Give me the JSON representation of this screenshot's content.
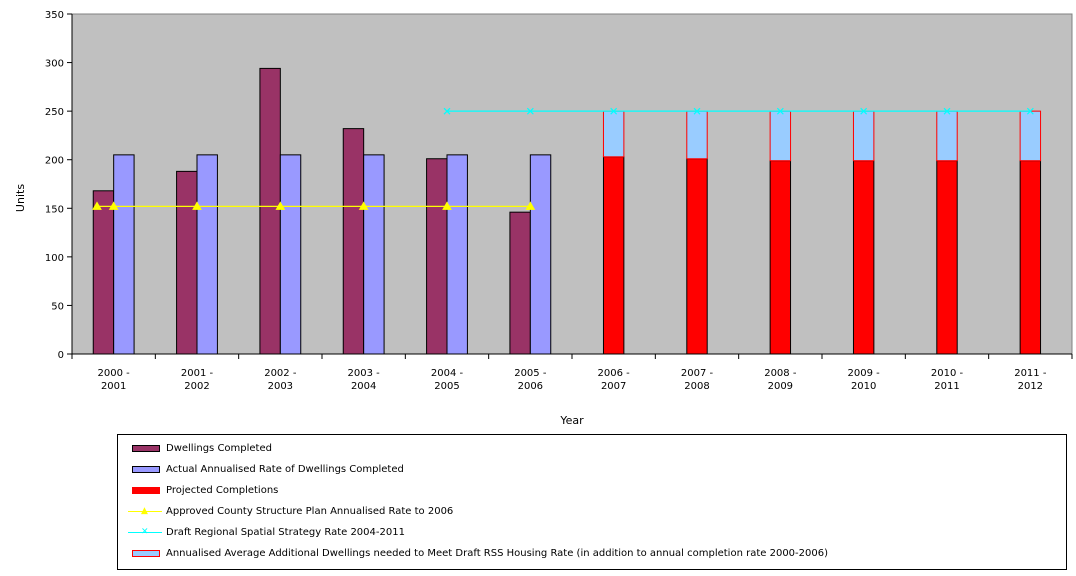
{
  "chart_data": {
    "type": "bar",
    "ylabel": "Units",
    "xlabel": "Year",
    "ylim": [
      0,
      350
    ],
    "yticks": [
      0,
      50,
      100,
      150,
      200,
      250,
      300,
      350
    ],
    "categories": [
      [
        "2000 -",
        "2001"
      ],
      [
        "2001 -",
        "2002"
      ],
      [
        "2002 -",
        "2003"
      ],
      [
        "2003 -",
        "2004"
      ],
      [
        "2004 -",
        "2005"
      ],
      [
        "2005 -",
        "2006"
      ],
      [
        "2006 -",
        "2007"
      ],
      [
        "2007 -",
        "2008"
      ],
      [
        "2008 -",
        "2009"
      ],
      [
        "2009 -",
        "2010"
      ],
      [
        "2010 -",
        "2011"
      ],
      [
        "2011 -",
        "2012"
      ]
    ],
    "plot_background": "#c0c0c0",
    "series": [
      {
        "name": "Dwellings Completed",
        "kind": "bar",
        "color": "#993366",
        "values": [
          168,
          188,
          294,
          232,
          201,
          146,
          null,
          null,
          null,
          null,
          null,
          null
        ]
      },
      {
        "name": "Actual Annualised Rate of Dwellings Completed",
        "kind": "bar",
        "color": "#9999ff",
        "values": [
          205,
          205,
          205,
          205,
          205,
          205,
          null,
          null,
          null,
          null,
          null,
          null
        ]
      },
      {
        "name": "Projected Completions",
        "kind": "stacked-bar",
        "color": "#ff0000",
        "values": [
          null,
          null,
          null,
          null,
          null,
          null,
          203,
          201,
          199,
          199,
          199,
          199
        ]
      },
      {
        "name": "Approved County Structure Plan Annualised Rate to 2006",
        "kind": "line",
        "color": "#ffff00",
        "values": [
          152,
          152,
          152,
          152,
          152,
          152,
          null,
          null,
          null,
          null,
          null,
          null
        ]
      },
      {
        "name": "Draft Regional Spatial Strategy Rate 2004-2011",
        "kind": "line",
        "color": "#00ffff",
        "values": [
          null,
          null,
          null,
          null,
          250,
          250,
          250,
          250,
          250,
          250,
          250,
          250
        ]
      },
      {
        "name": "Annualised Average Additional Dwellings needed to Meet Draft RSS Housing Rate (in addition to annual completion rate 2000-2006)",
        "kind": "stacked-bar",
        "color": "#99ccff",
        "values": [
          null,
          null,
          null,
          null,
          null,
          null,
          47,
          49,
          51,
          51,
          51,
          51
        ]
      }
    ],
    "legend": {
      "position": "bottom",
      "entries": [
        "Dwellings Completed",
        "Actual Annualised Rate of Dwellings Completed",
        "Projected Completions",
        "Approved County Structure Plan Annualised Rate to 2006",
        "Draft Regional Spatial Strategy Rate 2004-2011",
        "Annualised Average Additional Dwellings needed to Meet Draft RSS Housing Rate (in addition to annual completion rate 2000-2006)"
      ]
    }
  }
}
